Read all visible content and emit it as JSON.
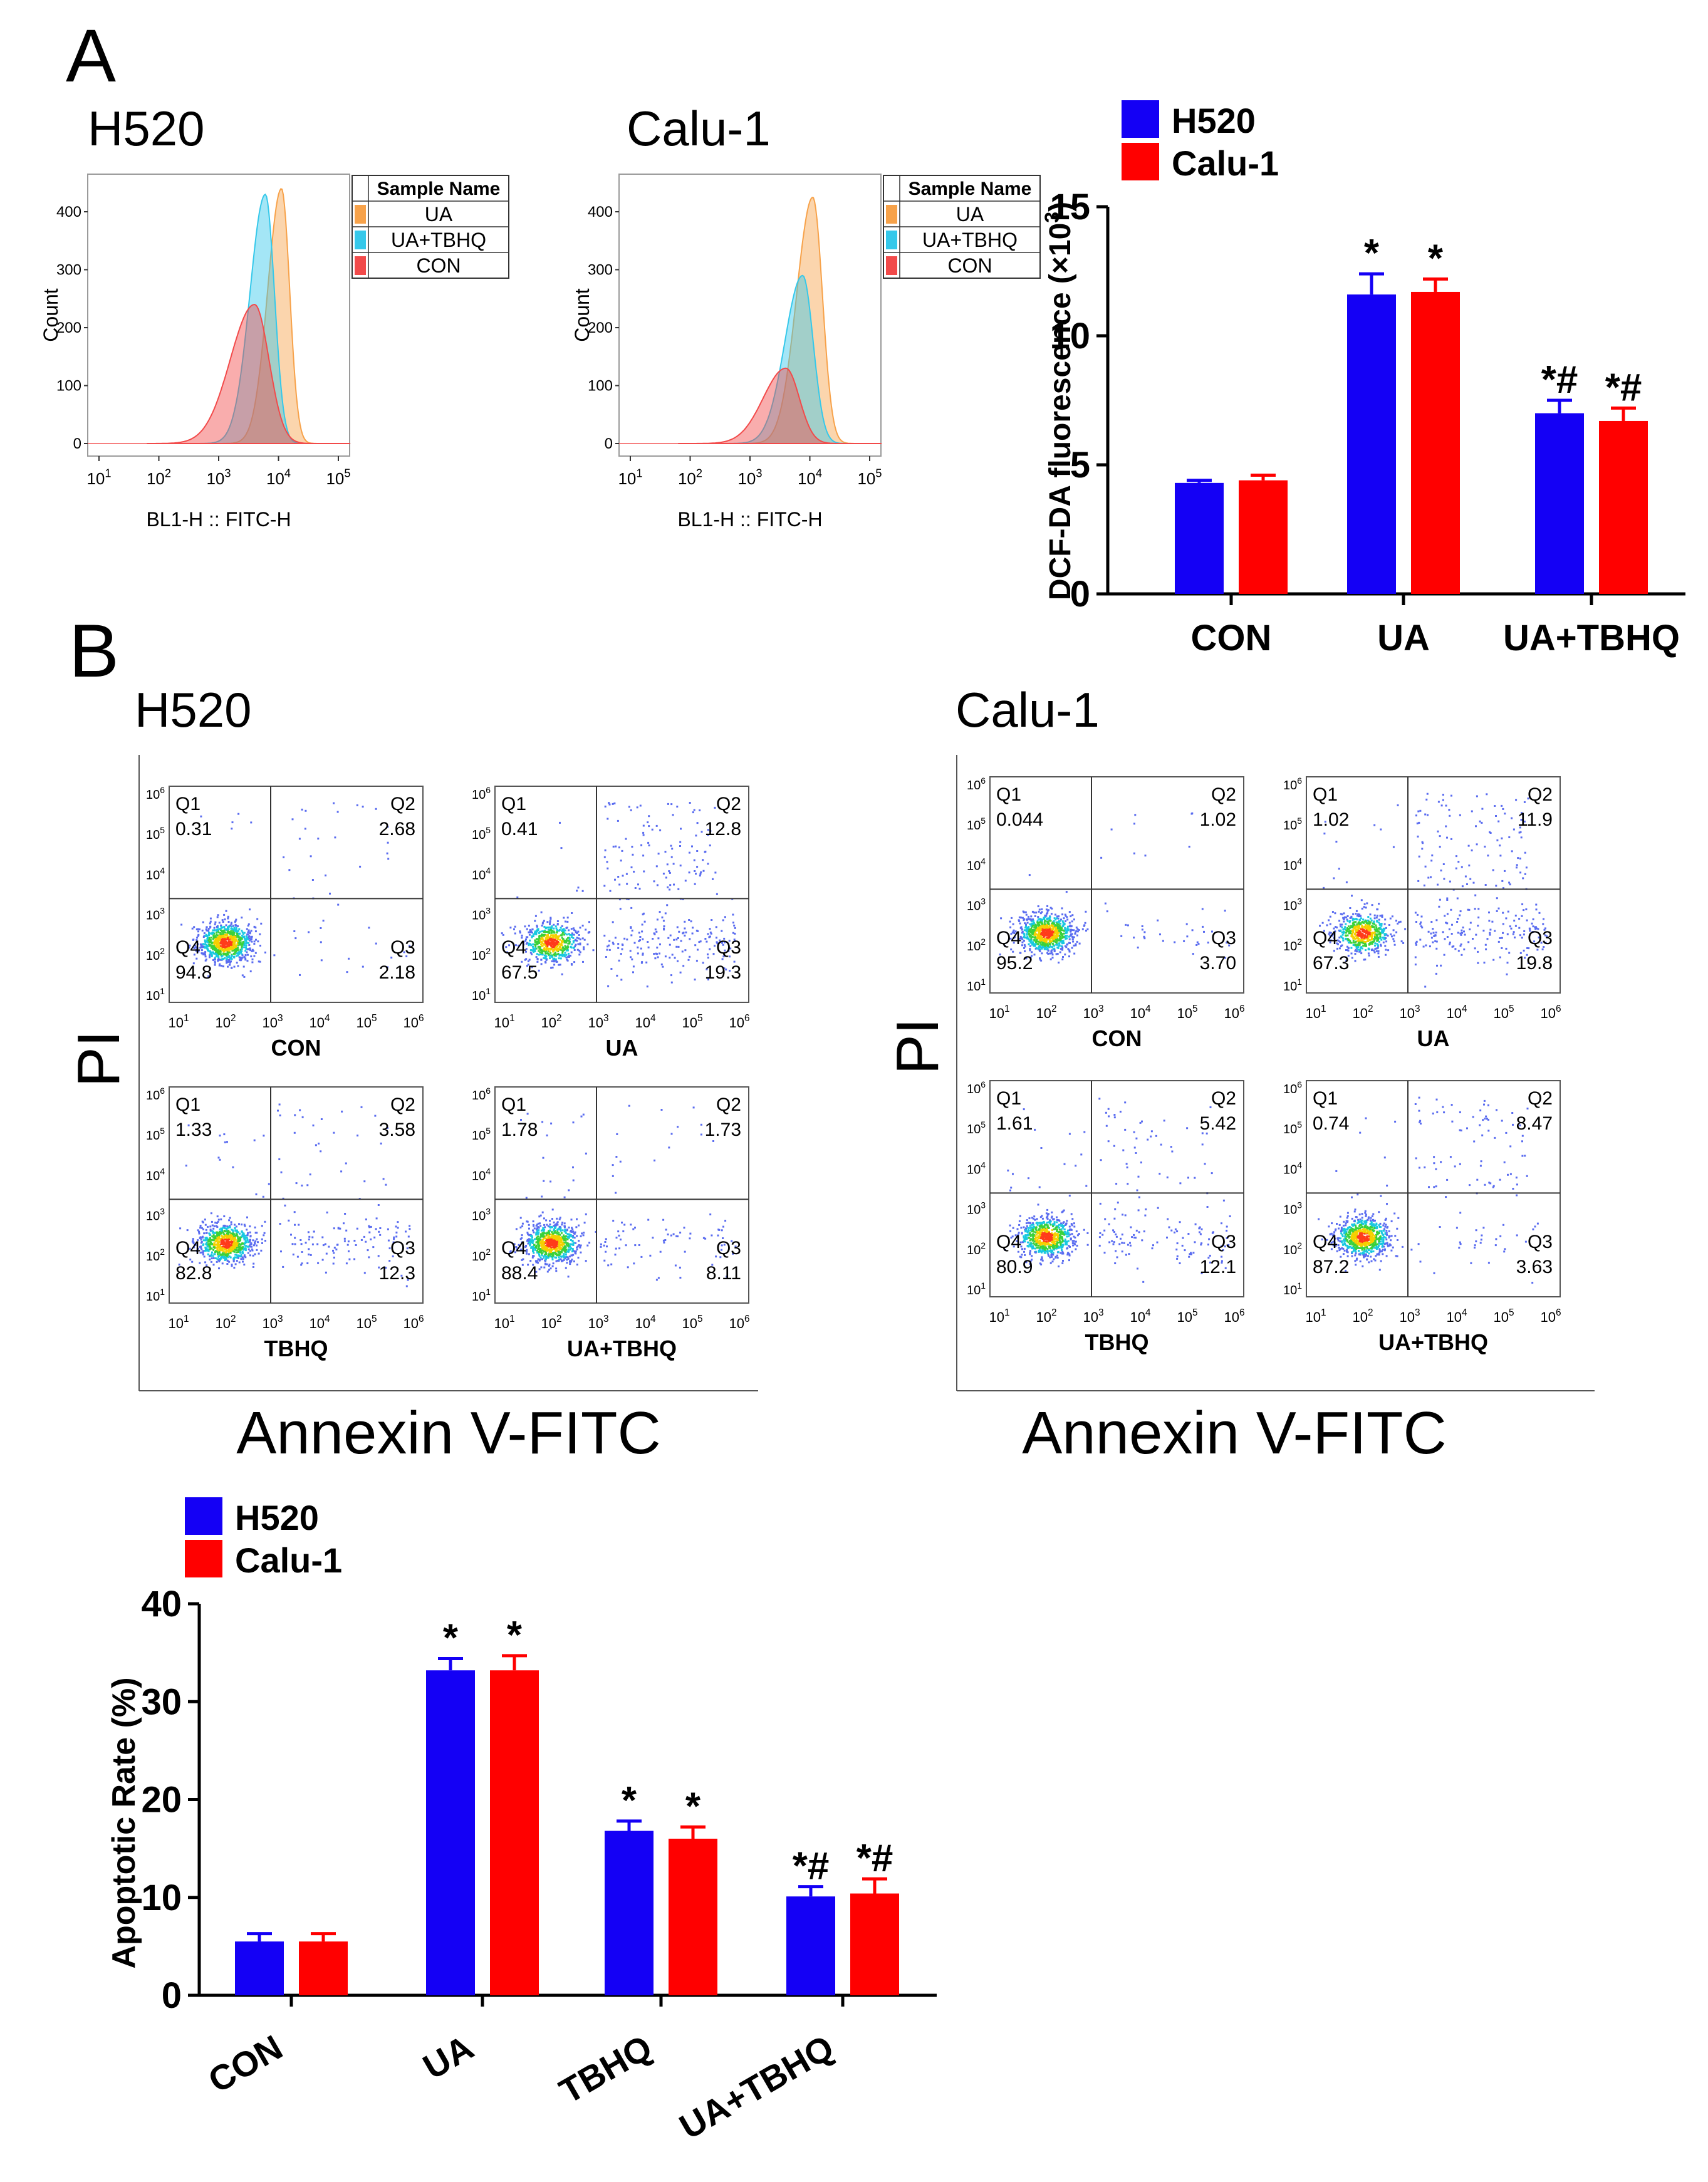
{
  "panels": {
    "a": "A",
    "b": "B"
  },
  "colors": {
    "h520": "#1400f5",
    "calu1": "#ff0000",
    "ua": "#f7a24a",
    "ua_tbhq": "#35c8ea",
    "con": "#f24a4a",
    "axis": "#000000",
    "frame": "#9a9a9a"
  },
  "histograms": [
    {
      "title": "H520",
      "xlabel": "BL1-H :: FITC-H",
      "ylabel": "Count",
      "yticks": [
        "0",
        "100",
        "200",
        "300",
        "400"
      ],
      "xticks": [
        "10^1",
        "10^2",
        "10^3",
        "10^4",
        "10^5"
      ],
      "legend": {
        "header": "Sample Name",
        "items": [
          "UA",
          "UA+TBHQ",
          "CON"
        ]
      },
      "peaks": [
        {
          "sample": "UA",
          "log_center": 4.05,
          "log_width": 0.17,
          "count": 440
        },
        {
          "sample": "UA+TBHQ",
          "log_center": 3.78,
          "log_width": 0.19,
          "count": 430
        },
        {
          "sample": "CON",
          "log_center": 3.6,
          "log_width": 0.3,
          "count": 240
        }
      ]
    },
    {
      "title": "Calu-1",
      "xlabel": "BL1-H :: FITC-H",
      "ylabel": "Count",
      "yticks": [
        "0",
        "100",
        "200",
        "300",
        "400"
      ],
      "xticks": [
        "10^1",
        "10^2",
        "10^3",
        "10^4",
        "10^5"
      ],
      "legend": {
        "header": "Sample Name",
        "items": [
          "UA",
          "UA+TBHQ",
          "CON"
        ]
      },
      "peaks": [
        {
          "sample": "UA",
          "log_center": 4.05,
          "log_width": 0.2,
          "count": 425
        },
        {
          "sample": "UA+TBHQ",
          "log_center": 3.88,
          "log_width": 0.22,
          "count": 290
        },
        {
          "sample": "CON",
          "log_center": 3.6,
          "log_width": 0.28,
          "count": 130
        }
      ]
    }
  ],
  "flow": [
    {
      "title": "H520",
      "ylabel": "PI",
      "xlabel": "Annexin V-FITC",
      "ticks": [
        "10^1",
        "10^2",
        "10^3",
        "10^4",
        "10^5",
        "10^6"
      ],
      "plots": [
        {
          "label": "CON",
          "q1": "0.31",
          "q2": "2.68",
          "q3": "2.18",
          "q4": "94.8"
        },
        {
          "label": "UA",
          "q1": "0.41",
          "q2": "12.8",
          "q3": "19.3",
          "q4": "67.5"
        },
        {
          "label": "TBHQ",
          "q1": "1.33",
          "q2": "3.58",
          "q3": "12.3",
          "q4": "82.8"
        },
        {
          "label": "UA+TBHQ",
          "q1": "1.78",
          "q2": "1.73",
          "q3": "8.11",
          "q4": "88.4"
        }
      ]
    },
    {
      "title": "Calu-1",
      "ylabel": "PI",
      "xlabel": "Annexin V-FITC",
      "ticks": [
        "10^1",
        "10^2",
        "10^3",
        "10^4",
        "10^5",
        "10^6"
      ],
      "plots": [
        {
          "label": "CON",
          "q1": "0.044",
          "q2": "1.02",
          "q3": "3.70",
          "q4": "95.2"
        },
        {
          "label": "UA",
          "q1": "1.02",
          "q2": "11.9",
          "q3": "19.8",
          "q4": "67.3"
        },
        {
          "label": "TBHQ",
          "q1": "1.61",
          "q2": "5.42",
          "q3": "12.1",
          "q4": "80.9"
        },
        {
          "label": "UA+TBHQ",
          "q1": "0.74",
          "q2": "8.47",
          "q3": "3.63",
          "q4": "87.2"
        }
      ]
    }
  ],
  "chart_data": [
    {
      "type": "bar",
      "title": "",
      "xlabel": "",
      "ylabel": "DCF-DA fluorescence (×10",
      "ylabel_superscript": "3",
      "ylabel_suffix": ")",
      "categories": [
        "CON",
        "UA",
        "UA+TBHQ"
      ],
      "series": [
        {
          "name": "H520",
          "values": [
            4.3,
            11.6,
            7.0
          ],
          "errors": [
            0.1,
            0.8,
            0.5
          ],
          "marks": [
            "",
            "*",
            "*#"
          ]
        },
        {
          "name": "Calu-1",
          "values": [
            4.4,
            11.7,
            6.7
          ],
          "errors": [
            0.2,
            0.5,
            0.5
          ],
          "marks": [
            "",
            "*",
            "*#"
          ]
        }
      ],
      "ylim": [
        0,
        15
      ],
      "yticks": [
        0,
        5,
        10,
        15
      ],
      "legend": "top-left"
    },
    {
      "type": "bar",
      "title": "",
      "xlabel": "",
      "ylabel": "Apoptotic Rate (%)",
      "categories": [
        "CON",
        "UA",
        "TBHQ",
        "UA+TBHQ"
      ],
      "series": [
        {
          "name": "H520",
          "values": [
            5.5,
            33.2,
            16.8,
            10.1
          ],
          "errors": [
            0.8,
            1.2,
            1.0,
            1.0
          ],
          "marks": [
            "",
            "*",
            "*",
            "*#"
          ]
        },
        {
          "name": "Calu-1",
          "values": [
            5.5,
            33.2,
            16.0,
            10.4
          ],
          "errors": [
            0.8,
            1.5,
            1.2,
            1.5
          ],
          "marks": [
            "",
            "*",
            "*",
            "*#"
          ]
        }
      ],
      "ylim": [
        0,
        40
      ],
      "yticks": [
        0,
        10,
        20,
        30,
        40
      ],
      "legend": "top-left"
    }
  ]
}
